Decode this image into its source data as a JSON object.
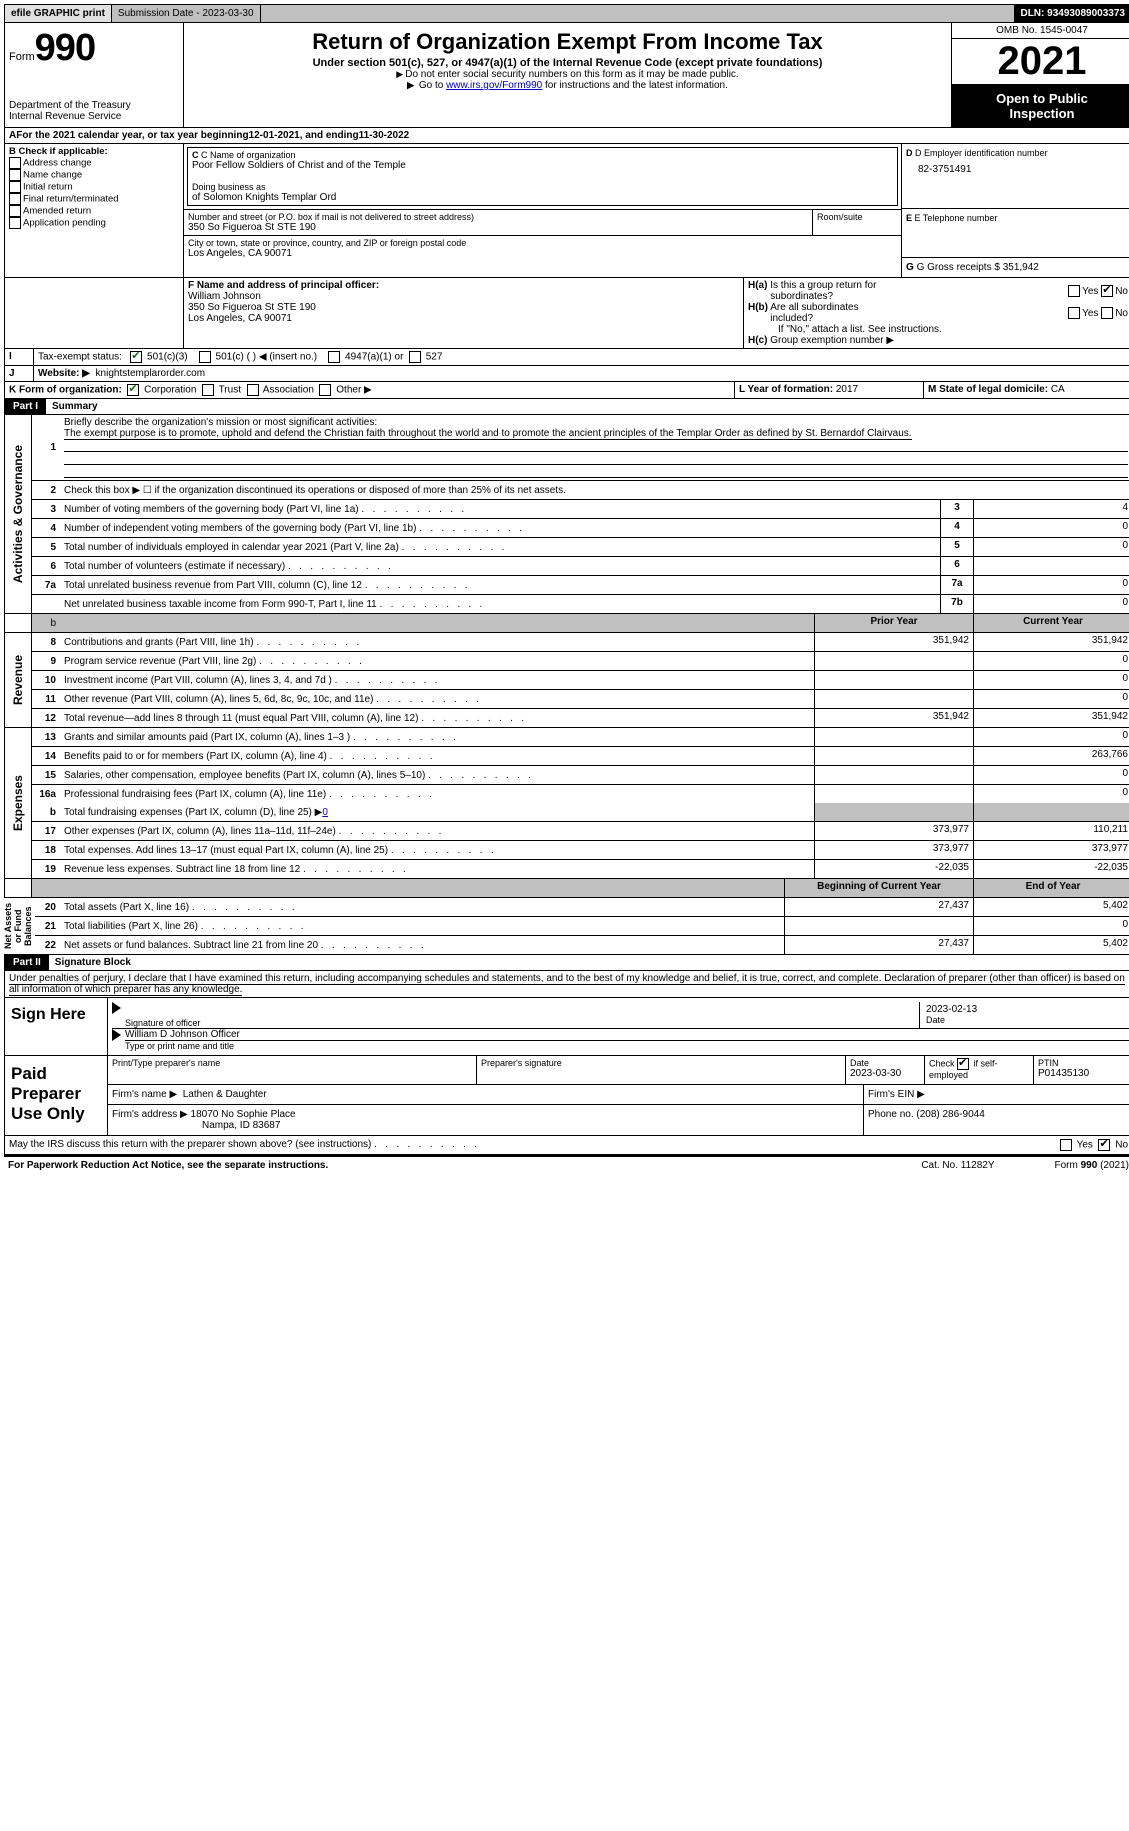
{
  "topbar": {
    "efile": "efile GRAPHIC print",
    "sub_label": "Submission Date - 2023-03-30",
    "dln": "DLN: 93493089003373"
  },
  "header": {
    "form_word": "Form",
    "form_num": "990",
    "dept": "Department of the Treasury",
    "irs": "Internal Revenue Service",
    "title": "Return of Organization Exempt From Income Tax",
    "subtitle": "Under section 501(c), 527, or 4947(a)(1) of the Internal Revenue Code (except private foundations)",
    "note1": "Do not enter social security numbers on this form as it may be made public.",
    "note2_pre": "Go to ",
    "note2_link": "www.irs.gov/Form990",
    "note2_post": " for instructions and the latest information.",
    "omb": "OMB No. 1545-0047",
    "year": "2021",
    "inspect1": "Open to Public",
    "inspect2": "Inspection"
  },
  "lineA": {
    "text_pre": "For the 2021 calendar year, or tax year beginning ",
    "begin": "12-01-2021",
    "mid": ", and ending ",
    "end": "11-30-2022"
  },
  "sectionB": {
    "label": "B Check if applicable:",
    "opts": [
      "Address change",
      "Name change",
      "Initial return",
      "Final return/terminated",
      "Amended return",
      "Application pending"
    ],
    "c_label": "C Name of organization",
    "org_name": "Poor Fellow Soldiers of Christ and of the Temple",
    "dba_label": "Doing business as",
    "dba": "of Solomon Knights Templar Ord",
    "addr_label": "Number and street (or P.O. box if mail is not delivered to street address)",
    "room_label": "Room/suite",
    "addr": "350 So Figueroa St STE 190",
    "city_label": "City or town, state or province, country, and ZIP or foreign postal code",
    "city": "Los Angeles, CA  90071",
    "d_label": "D Employer identification number",
    "ein": "82-3751491",
    "e_label": "E Telephone number",
    "g_label": "G Gross receipts $ ",
    "g_val": "351,942"
  },
  "sectionF": {
    "f_label": "F  Name and address of principal officer:",
    "name": "William Johnson",
    "addr1": "350 So Figueroa St STE 190",
    "addr2": "Los Angeles, CA  90071",
    "ha_label": "H(a)  Is this a group return for subordinates?",
    "hb_label": "H(b)  Are all subordinates included?",
    "hb_note": "If \"No,\" attach a list. See instructions.",
    "hc_label": "H(c)  Group exemption number",
    "yes": "Yes",
    "no": "No"
  },
  "sectionI": {
    "label": "Tax-exempt status:",
    "opt1": "501(c)(3)",
    "opt2": "501(c) (  ) ◀ (insert no.)",
    "opt3": "4947(a)(1) or",
    "opt4": "527"
  },
  "sectionJ": {
    "label": "Website: ▶",
    "val": "knightstemplarorder.com"
  },
  "sectionK": {
    "label": "K Form of organization:",
    "opts": [
      "Corporation",
      "Trust",
      "Association",
      "Other ▶"
    ],
    "l_label": "L Year of formation: ",
    "l_val": "2017",
    "m_label": "M State of legal domicile: ",
    "m_val": "CA"
  },
  "part1": {
    "num": "Part I",
    "title": "Summary",
    "vlabel": "Activities & Governance",
    "q1": "Briefly describe the organization's mission or most significant activities:",
    "mission": "The exempt purpose is to promote, uphold and defend the Christian faith throughout the world and to promote the ancient principles of the Templar Order as defined by St. Bernardof Clairvaus.",
    "q2": "Check this box ▶ ☐  if the organization discontinued its operations or disposed of more than 25% of its net assets.",
    "lines": [
      {
        "n": "3",
        "d": "Number of voting members of the governing body (Part VI, line 1a)",
        "box": "3",
        "v": "4"
      },
      {
        "n": "4",
        "d": "Number of independent voting members of the governing body (Part VI, line 1b)",
        "box": "4",
        "v": "0"
      },
      {
        "n": "5",
        "d": "Total number of individuals employed in calendar year 2021 (Part V, line 2a)",
        "box": "5",
        "v": "0"
      },
      {
        "n": "6",
        "d": "Total number of volunteers (estimate if necessary)",
        "box": "6",
        "v": ""
      },
      {
        "n": "7a",
        "d": "Total unrelated business revenue from Part VIII, column (C), line 12",
        "box": "7a",
        "v": "0"
      },
      {
        "n": "",
        "d": "Net unrelated business taxable income from Form 990-T, Part I, line 11",
        "box": "7b",
        "v": "0"
      }
    ]
  },
  "revenue": {
    "vlabel": "Revenue",
    "hdr_prior": "Prior Year",
    "hdr_curr": "Current Year",
    "lines": [
      {
        "n": "8",
        "d": "Contributions and grants (Part VIII, line 1h)",
        "p": "351,942",
        "c": "351,942"
      },
      {
        "n": "9",
        "d": "Program service revenue (Part VIII, line 2g)",
        "p": "",
        "c": "0"
      },
      {
        "n": "10",
        "d": "Investment income (Part VIII, column (A), lines 3, 4, and 7d )",
        "p": "",
        "c": "0"
      },
      {
        "n": "11",
        "d": "Other revenue (Part VIII, column (A), lines 5, 6d, 8c, 9c, 10c, and 11e)",
        "p": "",
        "c": "0"
      },
      {
        "n": "12",
        "d": "Total revenue—add lines 8 through 11 (must equal Part VIII, column (A), line 12)",
        "p": "351,942",
        "c": "351,942"
      }
    ]
  },
  "expenses": {
    "vlabel": "Expenses",
    "lines": [
      {
        "n": "13",
        "d": "Grants and similar amounts paid (Part IX, column (A), lines 1–3 )",
        "p": "",
        "c": "0"
      },
      {
        "n": "14",
        "d": "Benefits paid to or for members (Part IX, column (A), line 4)",
        "p": "",
        "c": "263,766"
      },
      {
        "n": "15",
        "d": "Salaries, other compensation, employee benefits (Part IX, column (A), lines 5–10)",
        "p": "",
        "c": "0"
      },
      {
        "n": "16a",
        "d": "Professional fundraising fees (Part IX, column (A), line 11e)",
        "p": "",
        "c": "0"
      }
    ],
    "line_b_pre": "Total fundraising expenses (Part IX, column (D), line 25) ▶",
    "line_b_val": "0",
    "lines2": [
      {
        "n": "17",
        "d": "Other expenses (Part IX, column (A), lines 11a–11d, 11f–24e)",
        "p": "373,977",
        "c": "110,211"
      },
      {
        "n": "18",
        "d": "Total expenses. Add lines 13–17 (must equal Part IX, column (A), line 25)",
        "p": "373,977",
        "c": "373,977"
      },
      {
        "n": "19",
        "d": "Revenue less expenses. Subtract line 18 from line 12",
        "p": "-22,035",
        "c": "-22,035"
      }
    ]
  },
  "netassets": {
    "vlabel": "Net Assets or Fund Balances",
    "hdr_begin": "Beginning of Current Year",
    "hdr_end": "End of Year",
    "lines": [
      {
        "n": "20",
        "d": "Total assets (Part X, line 16)",
        "p": "27,437",
        "c": "5,402"
      },
      {
        "n": "21",
        "d": "Total liabilities (Part X, line 26)",
        "p": "",
        "c": "0"
      },
      {
        "n": "22",
        "d": "Net assets or fund balances. Subtract line 21 from line 20",
        "p": "27,437",
        "c": "5,402"
      }
    ]
  },
  "part2": {
    "num": "Part II",
    "title": "Signature Block",
    "decl": "Under penalties of perjury, I declare that I have examined this return, including accompanying schedules and statements, and to the best of my knowledge and belief, it is true, correct, and complete. Declaration of preparer (other than officer) is based on all information of which preparer has any knowledge."
  },
  "sign": {
    "label": "Sign Here",
    "sig_label": "Signature of officer",
    "date": "2023-02-13",
    "date_label": "Date",
    "name": "William D Johnson  Officer",
    "name_label": "Type or print name and title"
  },
  "preparer": {
    "label": "Paid Preparer Use Only",
    "print_label": "Print/Type preparer's name",
    "sig_label": "Preparer's signature",
    "date_label": "Date",
    "date": "2023-03-30",
    "check_label": "Check ☑ if self-employed",
    "ptin_label": "PTIN",
    "ptin": "P01435130",
    "firm_name_label": "Firm's name   ▶",
    "firm_name": "Lathen & Daughter",
    "firm_ein_label": "Firm's EIN ▶",
    "firm_addr_label": "Firm's address ▶",
    "firm_addr1": "18070 No Sophie Place",
    "firm_addr2": "Nampa, ID  83687",
    "phone_label": "Phone no. ",
    "phone": "(208) 286-9044"
  },
  "footer": {
    "discuss": "May the IRS discuss this return with the preparer shown above? (see instructions)",
    "paperwork": "For Paperwork Reduction Act Notice, see the separate instructions.",
    "cat": "Cat. No. 11282Y",
    "form": "Form 990 (2021)"
  }
}
